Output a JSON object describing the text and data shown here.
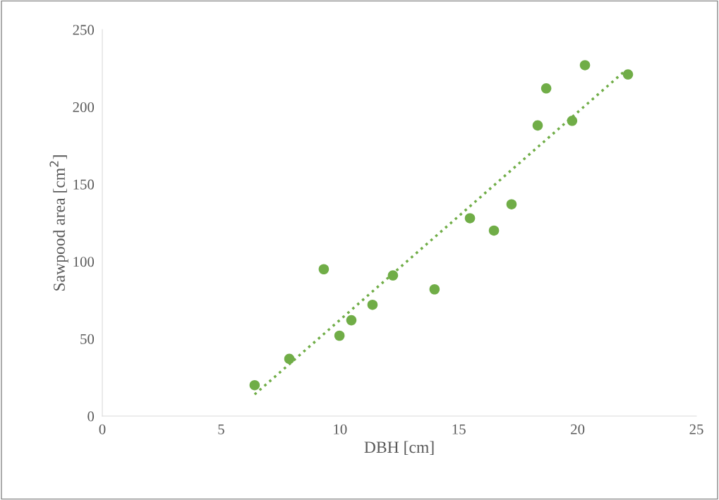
{
  "chart_data": {
    "type": "scatter",
    "xlabel": "DBH [cm]",
    "ylabel": "Sawpood area [cm$^{2}$]",
    "xlim": [
      0,
      25
    ],
    "xticks": [
      0,
      5,
      10,
      15,
      20,
      25
    ],
    "ylim": [
      0,
      250
    ],
    "yticks": [
      0,
      50,
      100,
      150,
      200,
      250
    ],
    "grid": false,
    "legend": false,
    "marker": "circle",
    "series": [
      {
        "color": "#70ad47",
        "x": [
          6.41,
          7.87,
          9.32,
          9.98,
          10.48,
          11.37,
          12.23,
          13.98,
          15.47,
          16.48,
          17.22,
          18.32,
          18.68,
          19.77,
          20.31,
          22.12
        ],
        "values": [
          20,
          37,
          95,
          52,
          62,
          72,
          91,
          82,
          128,
          120,
          137,
          188,
          212,
          191,
          227,
          221
        ]
      },
      {
        "type": "line",
        "color": "#70ad47",
        "line_style": "dotted",
        "marker": "none",
        "x": [
          6.41,
          21.97
        ],
        "values": [
          14,
          223
        ]
      }
    ]
  }
}
